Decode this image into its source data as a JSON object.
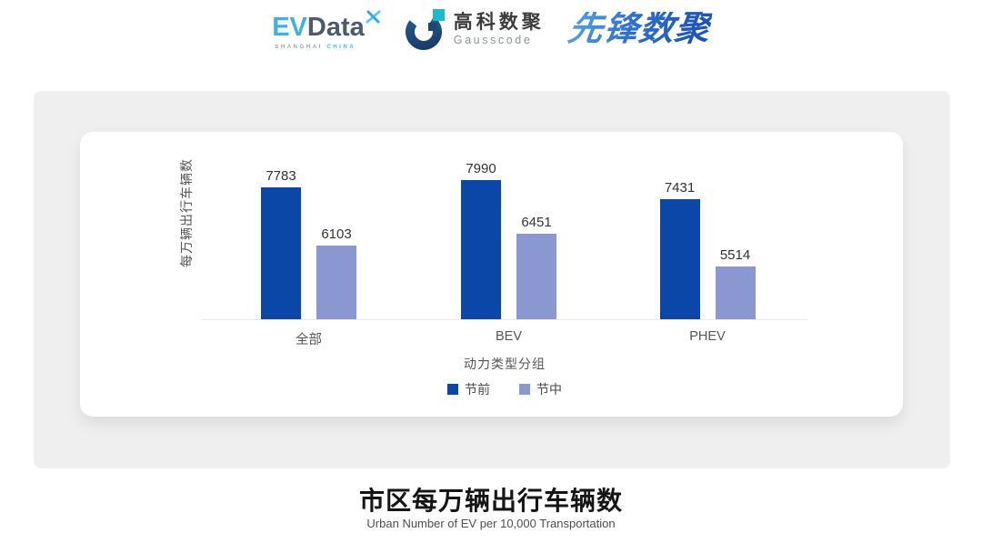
{
  "header": {
    "evdata": {
      "ev": "EV",
      "data": "Data",
      "sub_left": "SHANGHAI",
      "sub_right": "CHINA"
    },
    "gausscode": {
      "cn": "高科数聚",
      "en": "Gausscode"
    },
    "xianfeng": {
      "text": "先锋数聚"
    }
  },
  "chart_data": {
    "type": "bar",
    "categories": [
      "全部",
      "BEV",
      "PHEV"
    ],
    "series": [
      {
        "name": "节前",
        "color": "#0a47a6",
        "values": [
          7783,
          7990,
          7431
        ]
      },
      {
        "name": "节中",
        "color": "#8a97d0",
        "values": [
          6103,
          6451,
          5514
        ]
      }
    ],
    "ylabel": "每万辆出行车辆数",
    "xlabel": "动力类型分组",
    "ylim": [
      4000,
      8450
    ],
    "grid": false,
    "legend_position": "bottom",
    "value_labels": true
  },
  "footer": {
    "title": "市区每万辆出行车辆数",
    "subtitle": "Urban Number of EV per 10,000 Transportation"
  },
  "colors": {
    "panel_bg": "#efefef",
    "axis_line": "#e9e9e9",
    "bar_primary": "#0a47a6",
    "bar_secondary": "#8a97d0"
  }
}
